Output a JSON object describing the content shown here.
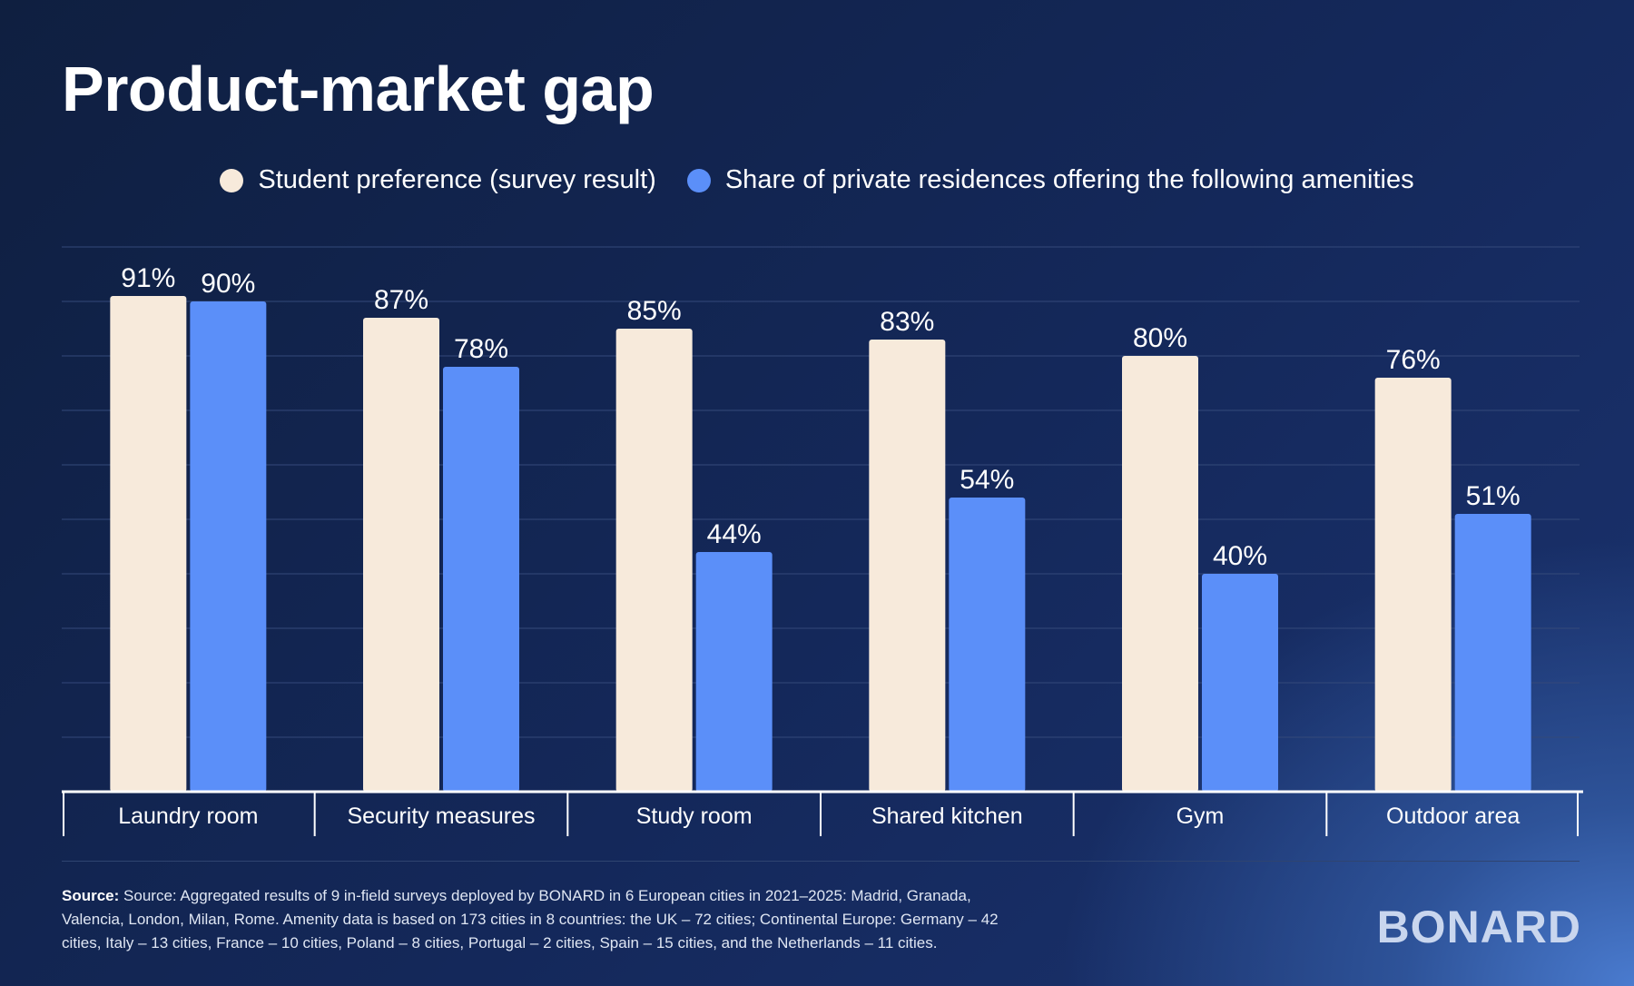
{
  "colors": {
    "student": "#f7eadb",
    "residences": "#5b8ff9",
    "grid": "#34497a",
    "axis": "#ffffff"
  },
  "footer": {
    "source_label": "Source:",
    "source_text": "Source: Aggregated results of 9 in-field surveys deployed by BONARD in 6 European cities in 2021–2025: Madrid, Granada, Valencia, London, Milan, Rome. Amenity data is based on 173 cities in 8 countries: the UK – 72 cities; Continental Europe: Germany – 42 cities, Italy – 13 cities, France – 10 cities, Poland – 8 cities, Portugal – 2 cities, Spain – 15 cities, and the Netherlands – 11 cities.",
    "logo": "BONARD"
  },
  "chart_data": {
    "type": "bar",
    "title": "Product-market gap",
    "categories": [
      "Laundry room",
      "Security measures",
      "Study room",
      "Shared kitchen",
      "Gym",
      "Outdoor area"
    ],
    "series": [
      {
        "name": "Student preference (survey result)",
        "values": [
          91,
          87,
          85,
          83,
          80,
          76
        ]
      },
      {
        "name": "Share of private residences offering the following amenities",
        "values": [
          90,
          78,
          44,
          54,
          40,
          51
        ]
      }
    ],
    "data_labels": [
      [
        "91%",
        "87%",
        "85%",
        "83%",
        "80%",
        "76%"
      ],
      [
        "90%",
        "78%",
        "44%",
        "54%",
        "40%",
        "51%"
      ]
    ],
    "ylim": [
      0,
      100
    ],
    "grid": true,
    "legend_position": "top-center"
  }
}
